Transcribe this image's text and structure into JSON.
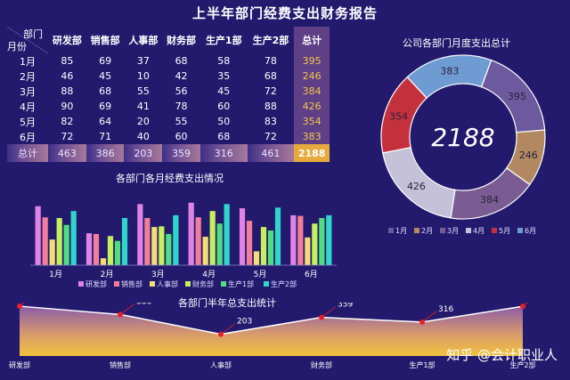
{
  "title": "上半年部门经费支出财务报告",
  "table": {
    "corner_top": "部门",
    "corner_bottom": "月份",
    "headers": [
      "研发部",
      "销售部",
      "人事部",
      "财务部",
      "生产1部",
      "生产2部",
      "总计"
    ],
    "rows": [
      {
        "month": "1月",
        "values": [
          85,
          69,
          37,
          68,
          58,
          78
        ],
        "total": 395
      },
      {
        "month": "2月",
        "values": [
          46,
          45,
          10,
          42,
          35,
          68
        ],
        "total": 246
      },
      {
        "month": "3月",
        "values": [
          88,
          68,
          55,
          56,
          45,
          72
        ],
        "total": 384
      },
      {
        "month": "4月",
        "values": [
          90,
          69,
          41,
          78,
          60,
          88
        ],
        "total": 426
      },
      {
        "month": "5月",
        "values": [
          82,
          64,
          20,
          55,
          50,
          83
        ],
        "total": 354
      },
      {
        "month": "6月",
        "values": [
          72,
          71,
          40,
          60,
          68,
          72
        ],
        "total": 383
      }
    ],
    "sum_label": "总计",
    "sums": [
      463,
      386,
      203,
      359,
      316,
      461
    ],
    "grand_total": 2188
  },
  "donut_title": "公司各部门月度支出总计",
  "donut_center": "2188",
  "bar_title": "各部门各月经费支出情况",
  "area_title": "各部门半年总支出统计",
  "watermark": "知乎 @会计职业人",
  "colors": {
    "研发部": "#e083e6",
    "销售部": "#f27e9a",
    "人事部": "#f3dd7a",
    "财务部": "#c6ef5e",
    "生产1部": "#4fdd80",
    "生产2部": "#30d6cc"
  },
  "chart_data": [
    {
      "type": "pie",
      "title": "公司各部门月度支出总计",
      "categories": [
        "1月",
        "2月",
        "3月",
        "4月",
        "5月",
        "6月"
      ],
      "values": [
        395,
        246,
        384,
        426,
        354,
        383
      ],
      "center_label": "2188",
      "legend_position": "bottom",
      "colors": [
        "#6d5a9e",
        "#b18860",
        "#7a5c93",
        "#c4c1d8",
        "#c4313c",
        "#6e9bd2"
      ]
    },
    {
      "type": "bar",
      "title": "各部门各月经费支出情况",
      "categories": [
        "1月",
        "2月",
        "3月",
        "4月",
        "5月",
        "6月"
      ],
      "series": [
        {
          "name": "研发部",
          "values": [
            85,
            46,
            88,
            90,
            82,
            72
          ]
        },
        {
          "name": "销售部",
          "values": [
            69,
            45,
            68,
            69,
            64,
            71
          ]
        },
        {
          "name": "人事部",
          "values": [
            37,
            10,
            55,
            41,
            20,
            40
          ]
        },
        {
          "name": "财务部",
          "values": [
            68,
            42,
            56,
            78,
            55,
            60
          ]
        },
        {
          "name": "生产1部",
          "values": [
            58,
            35,
            45,
            60,
            50,
            68
          ]
        },
        {
          "name": "生产2部",
          "values": [
            78,
            68,
            72,
            88,
            83,
            72
          ]
        }
      ],
      "ylim": [
        0,
        100
      ],
      "legend_position": "bottom",
      "grid": false
    },
    {
      "type": "area",
      "title": "各部门半年总支出统计",
      "categories": [
        "研发部",
        "销售部",
        "人事部",
        "财务部",
        "生产1部",
        "生产2部"
      ],
      "values": [
        463,
        386,
        203,
        359,
        316,
        461
      ],
      "ylim": [
        150,
        480
      ],
      "grid": false
    }
  ]
}
